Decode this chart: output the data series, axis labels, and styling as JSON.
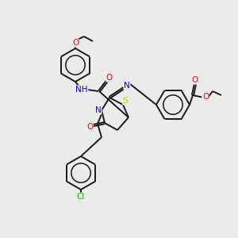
{
  "bg_color": "#ebebeb",
  "bond_color": "#1a1a1a",
  "atom_colors": {
    "O": "#ff0000",
    "N": "#0000ee",
    "S": "#cccc00",
    "Cl": "#00bb00",
    "H": "#888888",
    "C": "#1a1a1a"
  },
  "lw": 1.4,
  "ring_r": 20,
  "font": 7.5
}
